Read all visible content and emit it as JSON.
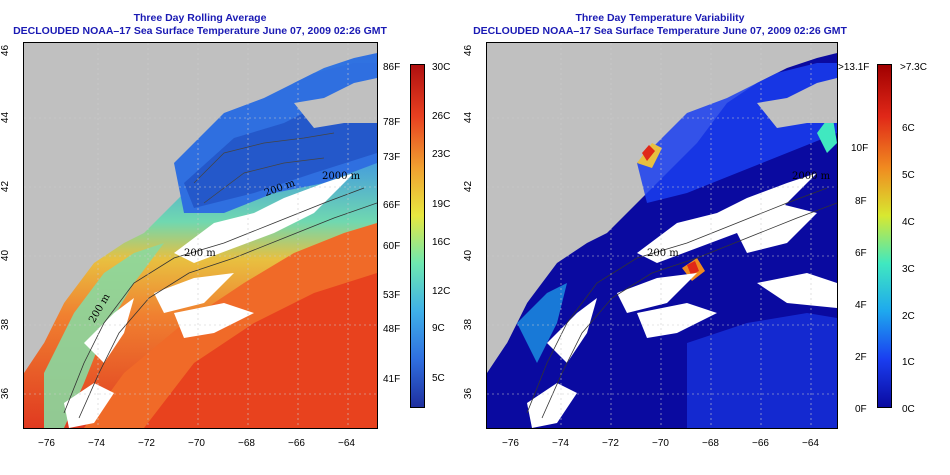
{
  "left_panel": {
    "title": "Three Day Rolling Average",
    "subtitle": "DECLOUDED NOAA–17 Sea Surface Temperature June 07, 2009 02:26 GMT",
    "colorbar_f": [
      "86F",
      "78F",
      "73F",
      "66F",
      "60F",
      "53F",
      "48F",
      "41F"
    ],
    "colorbar_c": [
      "30C",
      "26C",
      "23C",
      "19C",
      "16C",
      "12C",
      "9C",
      "5C"
    ],
    "contour_labels": [
      "2000 m",
      "200 m",
      "200 m",
      "200 m"
    ]
  },
  "right_panel": {
    "title": "Three Day Temperature Variability",
    "subtitle": "DECLOUDED NOAA–17 Sea Surface Temperature June 07, 2009 02:26 GMT",
    "colorbar_f": [
      ">13.1F",
      "10F",
      "8F",
      "6F",
      "4F",
      "2F",
      "0F"
    ],
    "colorbar_c": [
      ">7.3C",
      "6C",
      "5C",
      "4C",
      "3C",
      "2C",
      "1C",
      "0C"
    ],
    "contour_labels": [
      "2000 m",
      "200 m"
    ]
  },
  "x_ticks": [
    "−76",
    "−74",
    "−72",
    "−70",
    "−68",
    "−66",
    "−64"
  ],
  "y_ticks": [
    "46",
    "44",
    "42",
    "40",
    "38",
    "36"
  ],
  "colors": {
    "title": "#1a1ab4",
    "land": "#c0c0c0",
    "cloud": "#ffffff",
    "sst_scale": [
      "#1f2f9e",
      "#2f6fe0",
      "#3fb0e8",
      "#6ee8b0",
      "#e8e840",
      "#f0a030",
      "#e84020",
      "#b01010"
    ],
    "var_scale": [
      "#0a0aa0",
      "#1a3ef0",
      "#1ea8ee",
      "#40e8c0",
      "#d8e830",
      "#f08a20",
      "#e02818",
      "#a00000"
    ]
  }
}
